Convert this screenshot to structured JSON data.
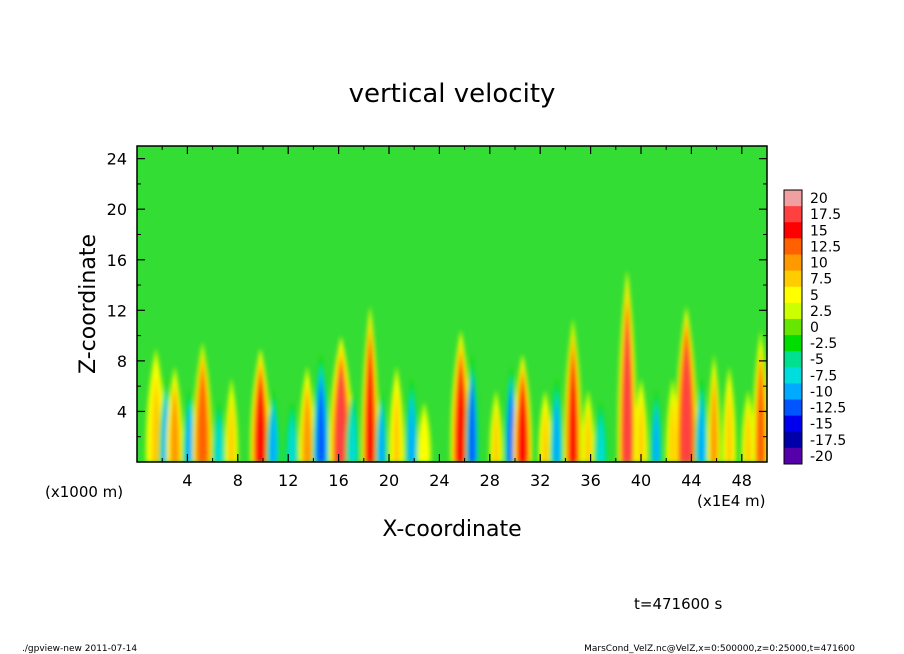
{
  "chart_data": {
    "type": "heatmap",
    "title": "vertical velocity",
    "xlabel": "X-coordinate",
    "ylabel": "Z-coordinate",
    "x_unit_left": "(x1000 m)",
    "x_unit_right": "(x1E4 m)",
    "xlim": [
      0,
      50
    ],
    "ylim": [
      0,
      25
    ],
    "xticks": [
      "4",
      "8",
      "12",
      "16",
      "20",
      "24",
      "28",
      "32",
      "36",
      "40",
      "44",
      "48"
    ],
    "yticks": [
      "4",
      "8",
      "12",
      "16",
      "20",
      "24"
    ],
    "colorbar": {
      "labels": [
        "20",
        "17.5",
        "15",
        "12.5",
        "10",
        "7.5",
        "5",
        "2.5",
        "0",
        "-2.5",
        "-5",
        "-7.5",
        "-10",
        "-12.5",
        "-15",
        "-17.5",
        "-20"
      ],
      "colors": [
        "#f0a0a0",
        "#ff4040",
        "#ff0000",
        "#ff6000",
        "#ff9900",
        "#ffcc00",
        "#ffff00",
        "#ccff00",
        "#66e600",
        "#00dd00",
        "#00e090",
        "#00dddd",
        "#00aaff",
        "#0055ff",
        "#0000ee",
        "#0000aa",
        "#5500aa"
      ]
    },
    "features": [
      {
        "x": 1.5,
        "w": 0.6,
        "h": 9.5,
        "v": 8
      },
      {
        "x": 2.3,
        "w": 0.4,
        "h": 7,
        "v": -9
      },
      {
        "x": 3.0,
        "w": 0.5,
        "h": 8,
        "v": 10
      },
      {
        "x": 4.2,
        "w": 0.45,
        "h": 6,
        "v": -10
      },
      {
        "x": 5.2,
        "w": 0.6,
        "h": 10,
        "v": 13
      },
      {
        "x": 6.5,
        "w": 0.4,
        "h": 5,
        "v": -8
      },
      {
        "x": 7.5,
        "w": 0.4,
        "h": 7,
        "v": 7
      },
      {
        "x": 9.8,
        "w": 0.6,
        "h": 9.5,
        "v": 15
      },
      {
        "x": 10.8,
        "w": 0.4,
        "h": 6,
        "v": -9
      },
      {
        "x": 12.3,
        "w": 0.4,
        "h": 5,
        "v": -8
      },
      {
        "x": 13.5,
        "w": 0.5,
        "h": 8,
        "v": 9
      },
      {
        "x": 14.6,
        "w": 0.5,
        "h": 9,
        "v": -13
      },
      {
        "x": 16.2,
        "w": 0.7,
        "h": 10.5,
        "v": 17
      },
      {
        "x": 17.1,
        "w": 0.4,
        "h": 6,
        "v": -8
      },
      {
        "x": 18.5,
        "w": 0.5,
        "h": 13,
        "v": 16
      },
      {
        "x": 19.4,
        "w": 0.35,
        "h": 6,
        "v": -9
      },
      {
        "x": 20.6,
        "w": 0.45,
        "h": 8,
        "v": 8
      },
      {
        "x": 21.8,
        "w": 0.4,
        "h": 7,
        "v": -10
      },
      {
        "x": 22.8,
        "w": 0.4,
        "h": 5,
        "v": 6
      },
      {
        "x": 25.7,
        "w": 0.6,
        "h": 11,
        "v": 15
      },
      {
        "x": 26.6,
        "w": 0.4,
        "h": 9,
        "v": -12
      },
      {
        "x": 28.5,
        "w": 0.4,
        "h": 6,
        "v": 7
      },
      {
        "x": 29.7,
        "w": 0.4,
        "h": 8,
        "v": -13
      },
      {
        "x": 30.6,
        "w": 0.55,
        "h": 9,
        "v": 16
      },
      {
        "x": 32.4,
        "w": 0.4,
        "h": 6,
        "v": 8
      },
      {
        "x": 33.3,
        "w": 0.4,
        "h": 7,
        "v": -9
      },
      {
        "x": 34.6,
        "w": 0.55,
        "h": 12,
        "v": 14
      },
      {
        "x": 35.8,
        "w": 0.4,
        "h": 6,
        "v": 7
      },
      {
        "x": 36.8,
        "w": 0.4,
        "h": 5,
        "v": -8
      },
      {
        "x": 38.9,
        "w": 0.55,
        "h": 16,
        "v": 17
      },
      {
        "x": 40.0,
        "w": 0.4,
        "h": 7,
        "v": 8
      },
      {
        "x": 41.2,
        "w": 0.35,
        "h": 6,
        "v": -10
      },
      {
        "x": 42.5,
        "w": 0.4,
        "h": 7,
        "v": 7
      },
      {
        "x": 43.6,
        "w": 0.65,
        "h": 13,
        "v": 18
      },
      {
        "x": 44.8,
        "w": 0.4,
        "h": 7,
        "v": -11
      },
      {
        "x": 45.8,
        "w": 0.4,
        "h": 9,
        "v": 9
      },
      {
        "x": 47.0,
        "w": 0.4,
        "h": 8,
        "v": 8
      },
      {
        "x": 48.5,
        "w": 0.4,
        "h": 6,
        "v": 7
      },
      {
        "x": 49.5,
        "w": 0.5,
        "h": 11,
        "v": 12
      }
    ]
  },
  "annotations": {
    "time": "t=471600 s",
    "footer_left": "./gpview-new   2011-07-14",
    "footer_right": "MarsCond_VelZ.nc@VelZ,x=0:500000,z=0:25000,t=471600"
  }
}
